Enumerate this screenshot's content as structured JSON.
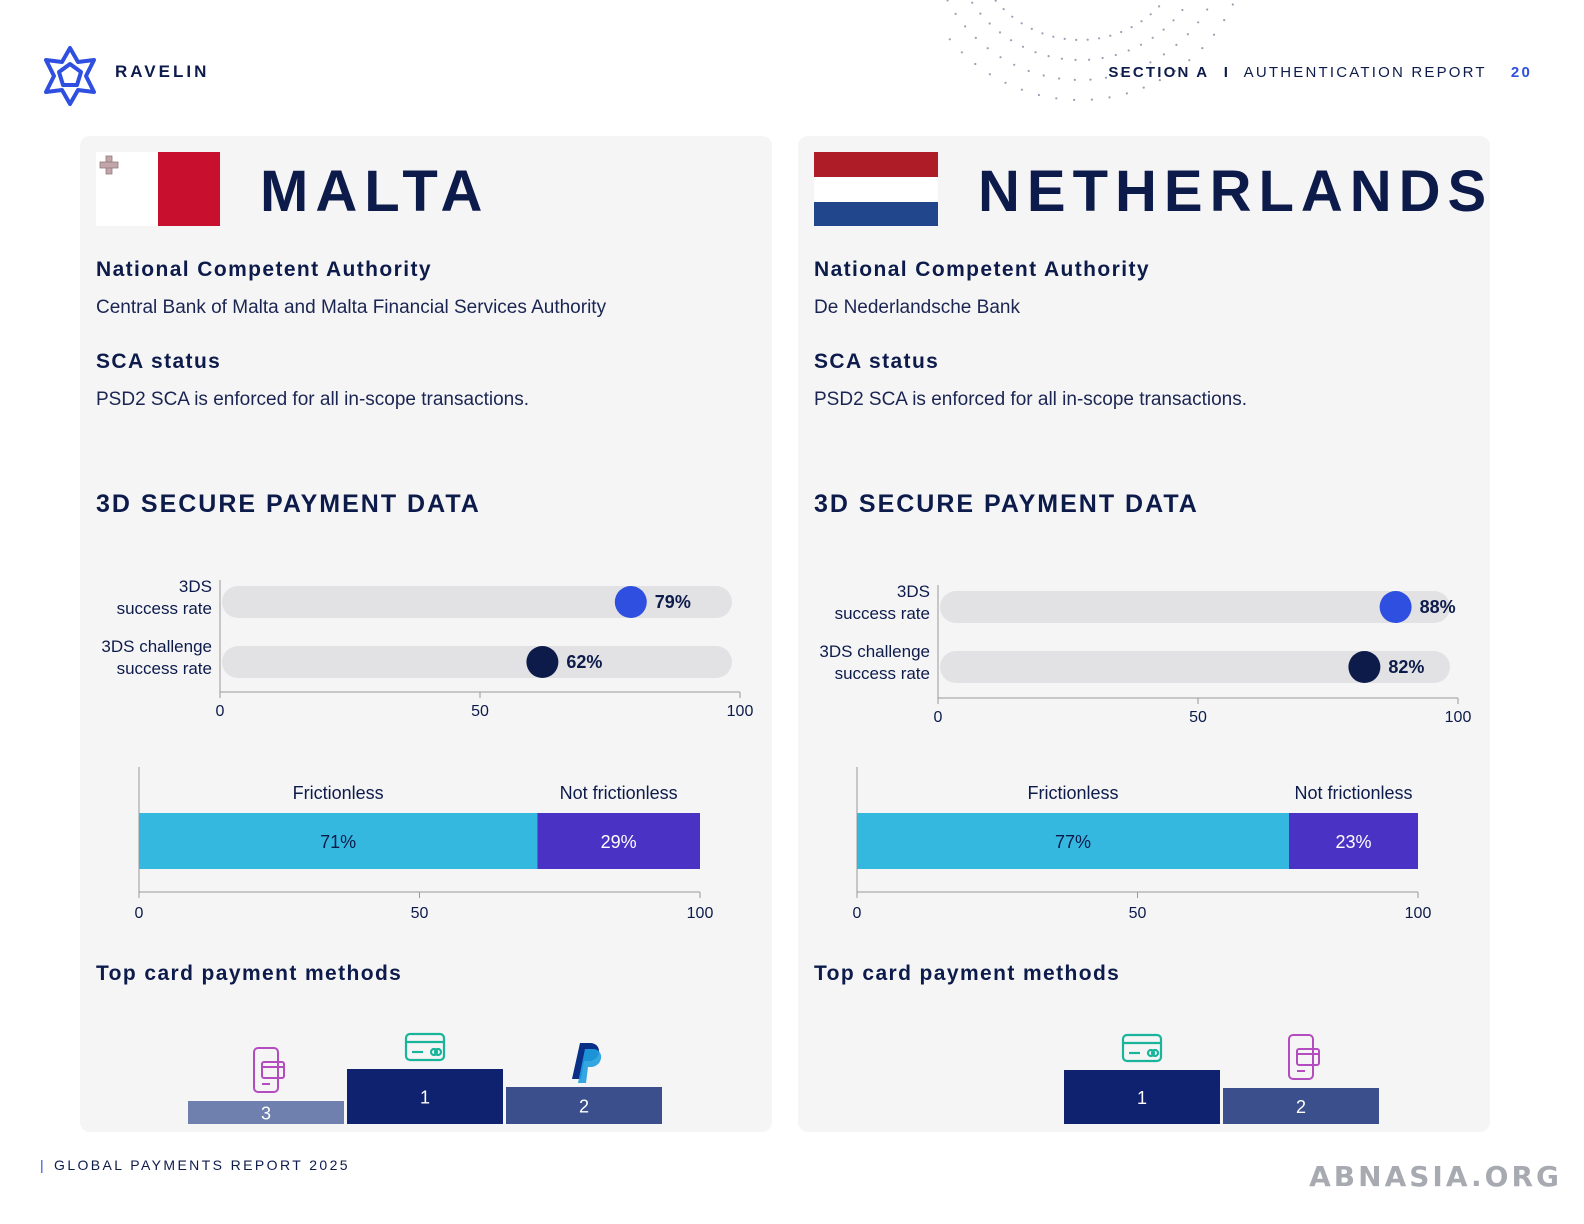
{
  "header": {
    "brand": "RAVELIN",
    "section_label": "SECTION A",
    "separator": "I",
    "report_title": "AUTHENTICATION REPORT",
    "page_number": "20"
  },
  "footer": {
    "text": "GLOBAL PAYMENTS REPORT 2025"
  },
  "watermark": "ABNASIA.ORG",
  "colors": {
    "navy": "#0d1b4b",
    "accent_blue": "#2f4fe0",
    "frictionless": "#35b8e0",
    "not_frictionless": "#4a33c4",
    "podium_1": "#0e2270",
    "podium_2": "#3a4f8c",
    "podium_3": "#6f7fae"
  },
  "countries": [
    {
      "name": "MALTA",
      "flag": "malta-flag",
      "authority_label": "National Competent Authority",
      "authority": "Central Bank of Malta and Malta Financial Services Authority",
      "sca_label": "SCA status",
      "sca_status": "PSD2 SCA is enforced for all in-scope transactions.",
      "section_title": "3D SECURE PAYMENT DATA",
      "top_methods_label": "Top card payment methods",
      "podium": [
        {
          "rank": "3",
          "icon": "mobile-wallet-icon"
        },
        {
          "rank": "1",
          "icon": "credit-card-icon"
        },
        {
          "rank": "2",
          "icon": "paypal-icon"
        }
      ]
    },
    {
      "name": "NETHERLANDS",
      "flag": "netherlands-flag",
      "authority_label": "National Competent Authority",
      "authority": "De Nederlandsche Bank",
      "sca_label": "SCA status",
      "sca_status": "PSD2 SCA is enforced for all in-scope transactions.",
      "section_title": "3D SECURE PAYMENT DATA",
      "top_methods_label": "Top card payment methods",
      "podium": [
        {
          "rank": "1",
          "icon": "credit-card-icon"
        },
        {
          "rank": "2",
          "icon": "mobile-wallet-icon"
        }
      ]
    }
  ],
  "chart_data": [
    {
      "type": "bar",
      "country": "MALTA",
      "categories": [
        "3DS\nsuccess rate",
        "3DS challenge\nsuccess rate"
      ],
      "values": [
        79,
        62
      ],
      "value_labels": [
        "79%",
        "62%"
      ],
      "xlim": [
        0,
        100
      ],
      "ticks": [
        "0",
        "50",
        "100"
      ]
    },
    {
      "type": "bar",
      "country": "MALTA",
      "stacked": true,
      "series": [
        {
          "name": "Frictionless",
          "values": [
            71
          ],
          "label": "71%"
        },
        {
          "name": "Not frictionless",
          "values": [
            29
          ],
          "label": "29%"
        }
      ],
      "xlim": [
        0,
        100
      ],
      "ticks": [
        "0",
        "50",
        "100"
      ]
    },
    {
      "type": "bar",
      "country": "NETHERLANDS",
      "categories": [
        "3DS\nsuccess rate",
        "3DS challenge\nsuccess rate"
      ],
      "values": [
        88,
        82
      ],
      "value_labels": [
        "88%",
        "82%"
      ],
      "xlim": [
        0,
        100
      ],
      "ticks": [
        "0",
        "50",
        "100"
      ]
    },
    {
      "type": "bar",
      "country": "NETHERLANDS",
      "stacked": true,
      "series": [
        {
          "name": "Frictionless",
          "values": [
            77
          ],
          "label": "77%"
        },
        {
          "name": "Not frictionless",
          "values": [
            23
          ],
          "label": "23%"
        }
      ],
      "xlim": [
        0,
        100
      ],
      "ticks": [
        "0",
        "50",
        "100"
      ]
    }
  ]
}
